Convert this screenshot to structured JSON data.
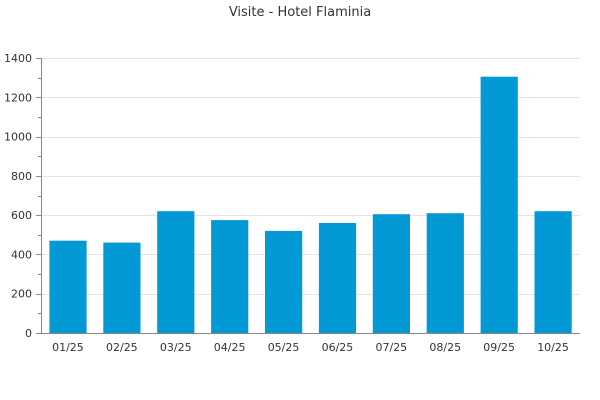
{
  "chart_data": {
    "type": "bar",
    "title": "Visite - Hotel Flaminia",
    "xlabel": "",
    "ylabel": "",
    "categories": [
      "01/25",
      "02/25",
      "03/25",
      "04/25",
      "05/25",
      "06/25",
      "07/25",
      "08/25",
      "09/25",
      "10/25"
    ],
    "values": [
      470,
      460,
      620,
      575,
      520,
      560,
      605,
      610,
      1305,
      620
    ],
    "ylim": [
      0,
      1400
    ],
    "yticks": [
      0,
      200,
      400,
      600,
      800,
      1000,
      1200,
      1400
    ],
    "grid": true,
    "legend": "none",
    "bar_color": "#0399d4"
  }
}
